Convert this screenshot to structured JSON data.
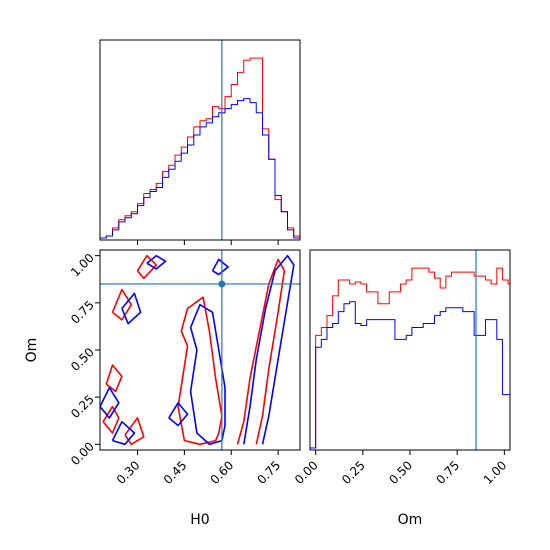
{
  "chart_data": {
    "type": "corner",
    "parameters": [
      "H0",
      "Om"
    ],
    "truth": {
      "H0": 0.57,
      "Om": 0.85
    },
    "truth_color": "#1f77b4",
    "series_colors": [
      "#ff0000",
      "#0000ff"
    ],
    "axes": {
      "H0": {
        "label": "H0",
        "lim": [
          0.18,
          0.82
        ],
        "ticks": [
          0.3,
          0.45,
          0.6,
          0.75
        ],
        "tick_labels": [
          "0.30",
          "0.45",
          "0.60",
          "0.75"
        ]
      },
      "Om": {
        "label": "Om",
        "lim": [
          -0.03,
          1.03
        ],
        "ticks": [
          0.0,
          0.25,
          0.5,
          0.75,
          1.0
        ],
        "tick_labels": [
          "0.00",
          "0.25",
          "0.50",
          "0.75",
          "1.00"
        ]
      }
    },
    "hist_H0": {
      "bin_edges": [
        0.18,
        0.2,
        0.22,
        0.24,
        0.26,
        0.28,
        0.3,
        0.32,
        0.34,
        0.36,
        0.38,
        0.4,
        0.42,
        0.44,
        0.46,
        0.48,
        0.5,
        0.52,
        0.54,
        0.56,
        0.58,
        0.6,
        0.62,
        0.64,
        0.66,
        0.68,
        0.7,
        0.72,
        0.74,
        0.76,
        0.78,
        0.8,
        0.82
      ],
      "series": [
        {
          "color": "#ff0000",
          "values": [
            1,
            2,
            6,
            10,
            12,
            14,
            18,
            23,
            25,
            28,
            34,
            37,
            42,
            46,
            51,
            56,
            59,
            60,
            66,
            65,
            71,
            77,
            83,
            89,
            90,
            90,
            55,
            40,
            20,
            14,
            6,
            2
          ]
        },
        {
          "color": "#0000ff",
          "values": [
            1,
            2,
            5,
            9,
            11,
            13,
            17,
            21,
            24,
            26,
            31,
            35,
            39,
            43,
            47,
            52,
            56,
            58,
            61,
            63,
            65,
            67,
            69,
            70,
            68,
            63,
            52,
            40,
            22,
            14,
            5,
            1
          ]
        }
      ]
    },
    "hist_Om": {
      "bin_edges": [
        -0.03,
        0.0,
        0.03,
        0.06,
        0.09,
        0.12,
        0.15,
        0.18,
        0.21,
        0.24,
        0.27,
        0.3,
        0.33,
        0.36,
        0.39,
        0.42,
        0.45,
        0.48,
        0.51,
        0.54,
        0.57,
        0.6,
        0.63,
        0.66,
        0.69,
        0.72,
        0.75,
        0.78,
        0.81,
        0.84,
        0.87,
        0.9,
        0.93,
        0.96,
        0.99,
        1.02,
        1.03
      ],
      "series": [
        {
          "color": "#ff0000",
          "values": [
            1,
            58,
            62,
            68,
            78,
            86,
            86,
            84,
            85,
            84,
            80,
            80,
            74,
            74,
            80,
            80,
            84,
            86,
            92,
            92,
            92,
            90,
            87,
            82,
            88,
            90,
            90,
            90,
            90,
            88,
            88,
            86,
            84,
            92,
            86,
            84
          ]
        },
        {
          "color": "#0000ff",
          "values": [
            1,
            52,
            56,
            62,
            64,
            70,
            74,
            75,
            64,
            63,
            66,
            66,
            66,
            66,
            66,
            56,
            56,
            58,
            62,
            62,
            64,
            64,
            68,
            70,
            72,
            72,
            72,
            70,
            70,
            58,
            58,
            66,
            66,
            56,
            28,
            28
          ]
        }
      ]
    },
    "contours_H0_Om": {
      "red_levels": [
        [
          [
            0.56,
            0.06
          ],
          [
            0.55,
            0.02
          ],
          [
            0.5,
            0.0
          ],
          [
            0.45,
            0.02
          ],
          [
            0.43,
            0.2
          ],
          [
            0.46,
            0.52
          ],
          [
            0.44,
            0.6
          ],
          [
            0.46,
            0.72
          ],
          [
            0.51,
            0.78
          ],
          [
            0.53,
            0.6
          ],
          [
            0.55,
            0.35
          ],
          [
            0.57,
            0.15
          ],
          [
            0.56,
            0.06
          ]
        ],
        [
          [
            0.62,
            0.0
          ],
          [
            0.64,
            0.12
          ],
          [
            0.66,
            0.35
          ],
          [
            0.69,
            0.6
          ],
          [
            0.72,
            0.85
          ],
          [
            0.75,
            0.98
          ],
          [
            0.77,
            0.92
          ],
          [
            0.75,
            0.7
          ],
          [
            0.72,
            0.4
          ],
          [
            0.7,
            0.15
          ],
          [
            0.68,
            0.0
          ]
        ],
        [
          [
            0.19,
            0.12
          ],
          [
            0.22,
            0.2
          ],
          [
            0.24,
            0.14
          ],
          [
            0.22,
            0.06
          ],
          [
            0.19,
            0.12
          ]
        ],
        [
          [
            0.2,
            0.32
          ],
          [
            0.22,
            0.42
          ],
          [
            0.25,
            0.36
          ],
          [
            0.23,
            0.28
          ],
          [
            0.2,
            0.32
          ]
        ],
        [
          [
            0.22,
            0.7
          ],
          [
            0.25,
            0.82
          ],
          [
            0.28,
            0.74
          ],
          [
            0.25,
            0.66
          ],
          [
            0.22,
            0.7
          ]
        ],
        [
          [
            0.26,
            0.05
          ],
          [
            0.3,
            0.14
          ],
          [
            0.32,
            0.04
          ],
          [
            0.28,
            0.0
          ],
          [
            0.26,
            0.05
          ]
        ],
        [
          [
            0.3,
            0.92
          ],
          [
            0.33,
            1.0
          ],
          [
            0.36,
            0.95
          ],
          [
            0.32,
            0.88
          ],
          [
            0.3,
            0.92
          ]
        ]
      ],
      "blue_levels": [
        [
          [
            0.57,
            0.02
          ],
          [
            0.53,
            0.0
          ],
          [
            0.49,
            0.06
          ],
          [
            0.47,
            0.28
          ],
          [
            0.49,
            0.5
          ],
          [
            0.47,
            0.62
          ],
          [
            0.5,
            0.74
          ],
          [
            0.54,
            0.7
          ],
          [
            0.56,
            0.5
          ],
          [
            0.58,
            0.3
          ],
          [
            0.58,
            0.1
          ],
          [
            0.57,
            0.02
          ]
        ],
        [
          [
            0.64,
            0.0
          ],
          [
            0.66,
            0.2
          ],
          [
            0.68,
            0.45
          ],
          [
            0.71,
            0.72
          ],
          [
            0.74,
            0.92
          ],
          [
            0.78,
            1.0
          ],
          [
            0.8,
            0.95
          ],
          [
            0.78,
            0.75
          ],
          [
            0.75,
            0.45
          ],
          [
            0.72,
            0.15
          ],
          [
            0.7,
            0.0
          ]
        ],
        [
          [
            0.18,
            0.2
          ],
          [
            0.21,
            0.3
          ],
          [
            0.24,
            0.22
          ],
          [
            0.21,
            0.14
          ],
          [
            0.18,
            0.2
          ]
        ],
        [
          [
            0.22,
            0.02
          ],
          [
            0.25,
            0.12
          ],
          [
            0.29,
            0.06
          ],
          [
            0.26,
            0.0
          ],
          [
            0.22,
            0.02
          ]
        ],
        [
          [
            0.25,
            0.72
          ],
          [
            0.29,
            0.8
          ],
          [
            0.31,
            0.7
          ],
          [
            0.27,
            0.64
          ],
          [
            0.25,
            0.72
          ]
        ],
        [
          [
            0.4,
            0.14
          ],
          [
            0.43,
            0.22
          ],
          [
            0.46,
            0.16
          ],
          [
            0.43,
            0.1
          ],
          [
            0.4,
            0.14
          ]
        ],
        [
          [
            0.54,
            0.92
          ],
          [
            0.56,
            0.98
          ],
          [
            0.59,
            0.94
          ],
          [
            0.56,
            0.9
          ],
          [
            0.54,
            0.92
          ]
        ],
        [
          [
            0.33,
            0.96
          ],
          [
            0.36,
            1.0
          ],
          [
            0.39,
            0.97
          ],
          [
            0.36,
            0.93
          ],
          [
            0.33,
            0.96
          ]
        ]
      ]
    }
  }
}
